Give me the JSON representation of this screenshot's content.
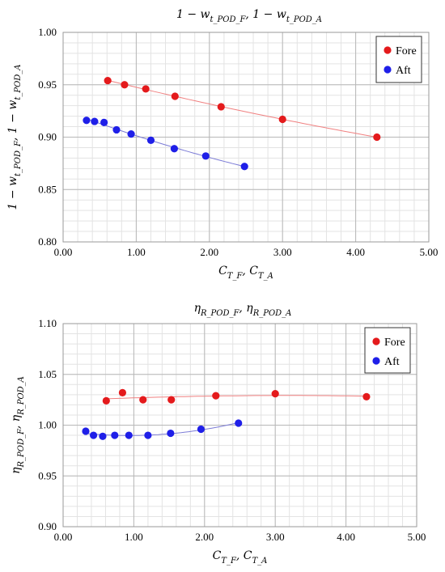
{
  "chart_data": [
    {
      "type": "scatter",
      "title": "1 − w_{t_POD_F}, 1 − w_{t_POD_A}",
      "xlabel": "C_{T_F}, C_{T_A}",
      "ylabel": "1 − w_{t_POD_F}, 1 − w_{t_POD_A}",
      "xlim": [
        0,
        5
      ],
      "ylim": [
        0.8,
        1.0
      ],
      "xticks": [
        "0.00",
        "1.00",
        "2.00",
        "3.00",
        "4.00",
        "5.00"
      ],
      "yticks": [
        "0.80",
        "0.85",
        "0.90",
        "0.95",
        "1.00"
      ],
      "grid": true,
      "legend_position": "top-right",
      "colors": {
        "Fore": "#e41a1c",
        "Aft": "#1f1fe8",
        "Fore_line": "#f08080",
        "Aft_line": "#7b7bd6"
      },
      "series": [
        {
          "name": "Fore",
          "x": [
            0.61,
            0.84,
            1.13,
            1.53,
            2.16,
            3.0,
            4.29
          ],
          "y": [
            0.954,
            0.95,
            0.946,
            0.939,
            0.929,
            0.917,
            0.9
          ]
        },
        {
          "name": "Aft",
          "x": [
            0.32,
            0.43,
            0.56,
            0.73,
            0.93,
            1.2,
            1.52,
            1.95,
            2.48
          ],
          "y": [
            0.916,
            0.915,
            0.914,
            0.907,
            0.903,
            0.897,
            0.889,
            0.882,
            0.872
          ]
        }
      ]
    },
    {
      "type": "scatter",
      "title": "η_{R_POD_F}, η_{R_POD_A}",
      "xlabel": "C_{T_F}, C_{T_A}",
      "ylabel": "η_{R_POD_F}, η_{R_POD_A}",
      "xlim": [
        0,
        5
      ],
      "ylim": [
        0.9,
        1.1
      ],
      "xticks": [
        "0.00",
        "1.00",
        "2.00",
        "3.00",
        "4.00",
        "5.00"
      ],
      "yticks": [
        "0.90",
        "0.95",
        "1.00",
        "1.05",
        "1.10"
      ],
      "grid": true,
      "legend_position": "top-right",
      "colors": {
        "Fore": "#e41a1c",
        "Aft": "#1f1fe8",
        "Fore_line": "#f08080",
        "Aft_line": "#7b7bd6"
      },
      "series": [
        {
          "name": "Fore",
          "x": [
            0.61,
            0.84,
            1.13,
            1.53,
            2.16,
            3.0,
            4.29
          ],
          "y": [
            1.024,
            1.032,
            1.025,
            1.025,
            1.029,
            1.031,
            1.028
          ]
        },
        {
          "name": "Aft",
          "x": [
            0.32,
            0.43,
            0.56,
            0.73,
            0.93,
            1.2,
            1.52,
            1.95,
            2.48
          ],
          "y": [
            0.994,
            0.99,
            0.989,
            0.99,
            0.99,
            0.99,
            0.992,
            0.996,
            1.002
          ]
        }
      ]
    }
  ]
}
